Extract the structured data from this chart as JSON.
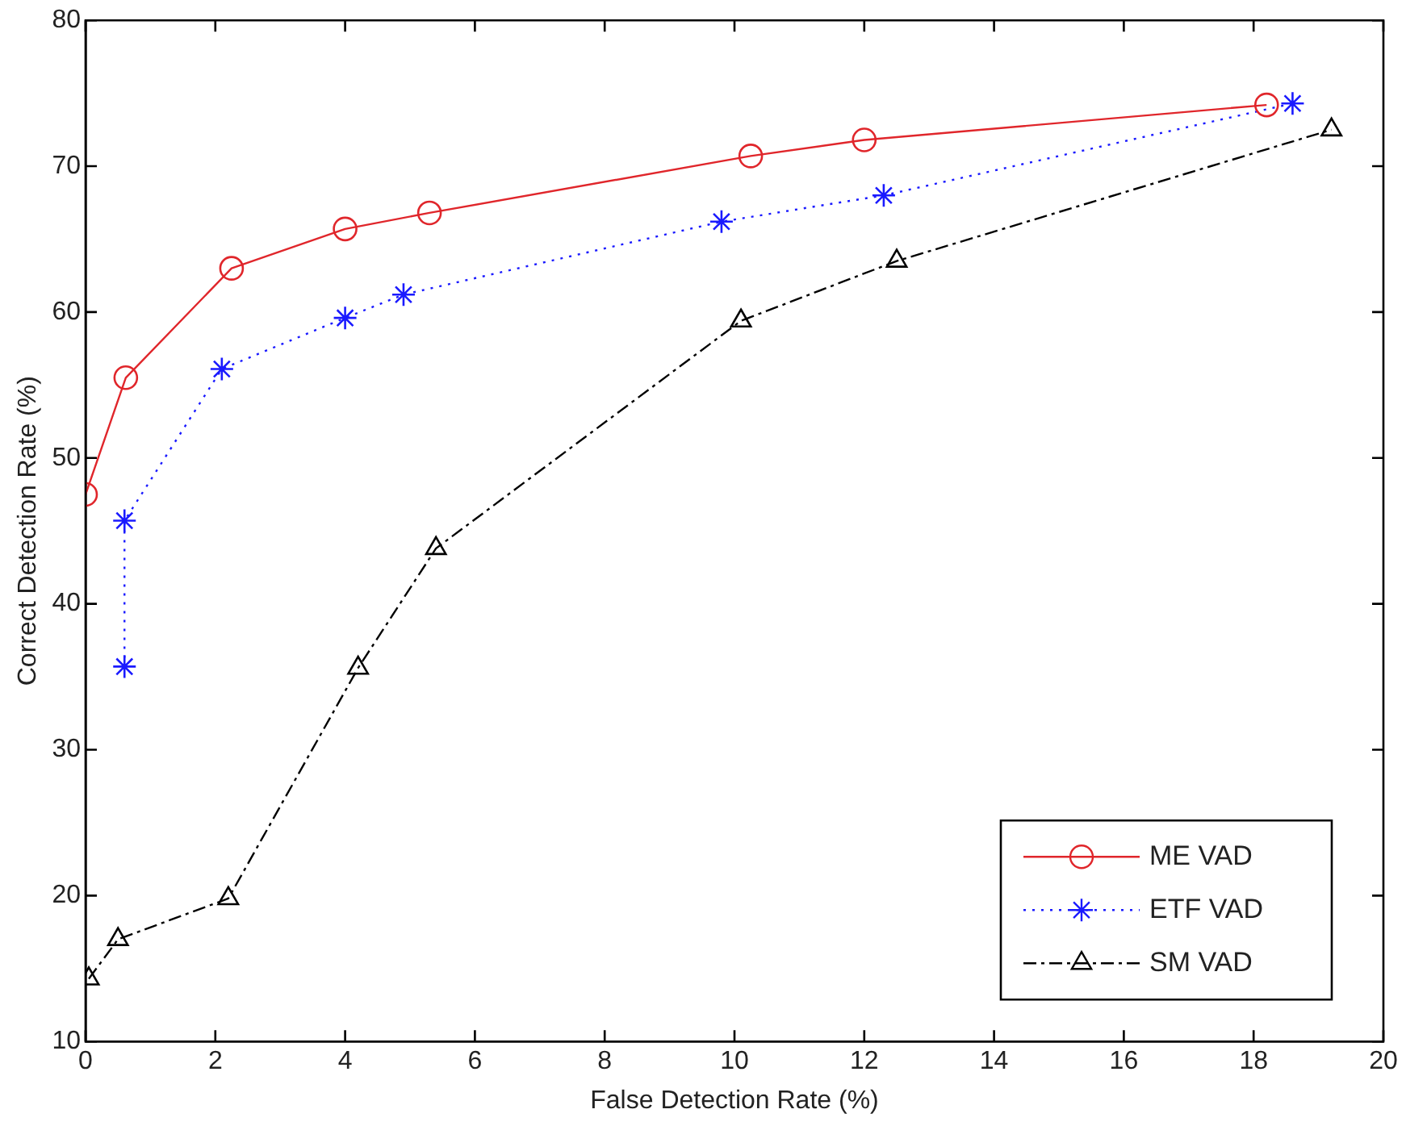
{
  "chart_data": {
    "type": "line",
    "xlabel": "False Detection Rate (%)",
    "ylabel": "Correct Detection Rate (%)",
    "xlim": [
      0,
      20
    ],
    "xticks": [
      0,
      2,
      4,
      6,
      8,
      10,
      12,
      14,
      16,
      18,
      20
    ],
    "ylim": [
      10,
      80
    ],
    "yticks": [
      10,
      20,
      30,
      40,
      50,
      60,
      70,
      80
    ],
    "grid": false,
    "legend": "bottom right",
    "series": [
      {
        "name": "ME VAD",
        "color": "#e0262b",
        "marker": "circle",
        "line_style": "solid",
        "x": [
          0,
          0.62,
          2.25,
          4.0,
          5.3,
          10.25,
          12.0,
          18.2
        ],
        "values": [
          47.5,
          55.5,
          63,
          65.7,
          66.8,
          70.7,
          71.8,
          74.2
        ]
      },
      {
        "name": "ETF VAD",
        "color": "#1a1aff",
        "marker": "cross",
        "line_style": "dotted",
        "x": [
          0.6,
          0.6,
          2.1,
          4.0,
          4.9,
          9.8,
          12.3,
          18.6
        ],
        "values": [
          35.7,
          45.7,
          56.1,
          59.6,
          61.2,
          66.2,
          68.0,
          74.3
        ]
      },
      {
        "name": "SM VAD",
        "color": "#000000",
        "marker": "triangle",
        "line_style": "dashed",
        "x": [
          0.05,
          0.5,
          2.2,
          4.2,
          5.4,
          10.1,
          12.5,
          19.2
        ],
        "values": [
          14.3,
          17,
          19.8,
          35.6,
          43.8,
          59.4,
          63.5,
          72.5
        ]
      }
    ]
  }
}
